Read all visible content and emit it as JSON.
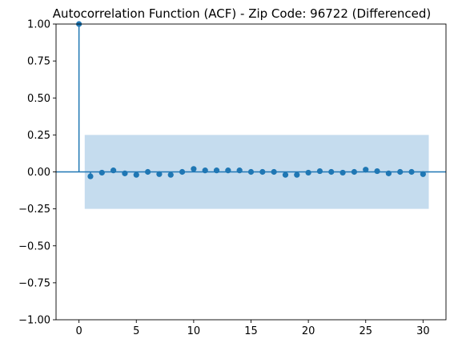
{
  "chart_data": {
    "type": "scatter",
    "subtype": "acf-stem",
    "title": "Autocorrelation Function (ACF) - Zip Code: 96722 (Differenced)",
    "xlabel": "",
    "ylabel": "",
    "xlim": [
      -2,
      32
    ],
    "ylim": [
      -1.0,
      1.0
    ],
    "x_ticks": [
      0,
      5,
      10,
      15,
      20,
      25,
      30
    ],
    "x_tick_labels": [
      "0",
      "5",
      "10",
      "15",
      "20",
      "25",
      "30"
    ],
    "y_ticks": [
      -1.0,
      -0.75,
      -0.5,
      -0.25,
      0.0,
      0.25,
      0.5,
      0.75,
      1.0
    ],
    "y_tick_labels": [
      "−1.00",
      "−0.75",
      "−0.50",
      "−0.25",
      "0.00",
      "0.25",
      "0.50",
      "0.75",
      "1.00"
    ],
    "grid": false,
    "confidence_band": {
      "x_range": [
        0.5,
        30.5
      ],
      "upper": 0.25,
      "lower": -0.25,
      "color": "#c5dcee"
    },
    "series": [
      {
        "lags": [
          0,
          1,
          2,
          3,
          4,
          5,
          6,
          7,
          8,
          9,
          10,
          11,
          12,
          13,
          14,
          15,
          16,
          17,
          18,
          19,
          20,
          21,
          22,
          23,
          24,
          25,
          26,
          27,
          28,
          29,
          30
        ],
        "values": [
          1.0,
          -0.03,
          -0.005,
          0.01,
          -0.01,
          -0.02,
          0.0,
          -0.015,
          -0.02,
          0.0,
          0.02,
          0.01,
          0.01,
          0.01,
          0.01,
          0.0,
          0.0,
          0.0,
          -0.02,
          -0.02,
          -0.005,
          0.005,
          0.0,
          -0.005,
          0.0,
          0.015,
          0.005,
          -0.01,
          0.0,
          0.0,
          -0.015
        ],
        "color": "#1f77b4"
      }
    ]
  }
}
